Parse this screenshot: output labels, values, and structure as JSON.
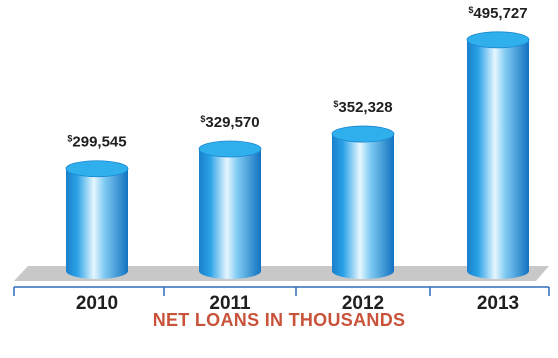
{
  "chart_data": {
    "type": "bar",
    "categories": [
      "2010",
      "2011",
      "2012",
      "2013"
    ],
    "values": [
      299545,
      329570,
      352328,
      495727
    ],
    "value_labels": [
      "299,545",
      "329,570",
      "352,328",
      "495,727"
    ],
    "currency_symbol": "$",
    "caption": "NET LOANS IN THOUSANDS",
    "ylim": [
      220000,
      500000
    ],
    "grid": false,
    "legend": "none"
  },
  "colors": {
    "caption": "#c9523a",
    "bar_dark": "#1379c6",
    "bar_light": "#e6f6ff",
    "bar_top": "#2fb0ec",
    "floor": "#c8c8c8",
    "axis": "#2d6fbd",
    "text": "#1f1f1f"
  }
}
